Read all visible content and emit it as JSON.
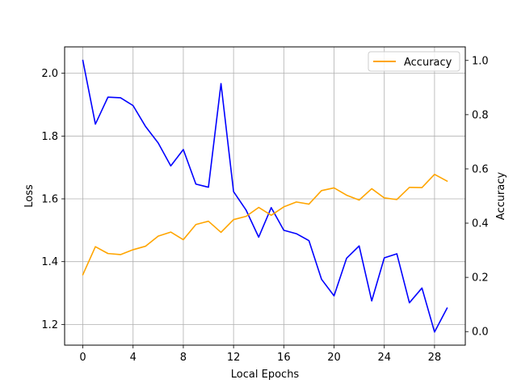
{
  "chart_data": {
    "type": "line",
    "title": "",
    "xlabel": "Local Epochs",
    "ylabel_left": "Loss",
    "ylabel_right": "Accuracy",
    "xlim": [
      -1.45,
      30.45
    ],
    "ylim_left": [
      1.134,
      2.084
    ],
    "ylim_right": [
      -0.05,
      1.05
    ],
    "xticks": [
      0,
      4,
      8,
      12,
      16,
      20,
      24,
      28
    ],
    "yticks_left": [
      1.2,
      1.4,
      1.6,
      1.8,
      2.0
    ],
    "yticks_left_labels": [
      "1.2",
      "1.4",
      "1.6",
      "1.8",
      "2.0"
    ],
    "yticks_right": [
      0.0,
      0.2,
      0.4,
      0.6,
      0.8,
      1.0
    ],
    "yticks_right_labels": [
      "0.0",
      "0.2",
      "0.4",
      "0.6",
      "0.8",
      "1.0"
    ],
    "grid": true,
    "legend_position": "top-right",
    "x": [
      0,
      1,
      2,
      3,
      4,
      5,
      6,
      7,
      8,
      9,
      10,
      11,
      12,
      13,
      14,
      15,
      16,
      17,
      18,
      19,
      20,
      21,
      22,
      23,
      24,
      25,
      26,
      27,
      28,
      29
    ],
    "series": [
      {
        "name": "",
        "axis": "left",
        "color": "#0000ff",
        "values": [
          2.041,
          1.838,
          1.924,
          1.922,
          1.897,
          1.83,
          1.778,
          1.705,
          1.757,
          1.647,
          1.637,
          1.967,
          1.623,
          1.564,
          1.478,
          1.572,
          1.5,
          1.489,
          1.467,
          1.344,
          1.291,
          1.411,
          1.45,
          1.275,
          1.412,
          1.425,
          1.269,
          1.316,
          1.176,
          1.252
        ]
      },
      {
        "name": "Accuracy",
        "axis": "right",
        "color": "#ffa500",
        "values": [
          0.21,
          0.313,
          0.288,
          0.284,
          0.302,
          0.315,
          0.352,
          0.367,
          0.339,
          0.395,
          0.407,
          0.366,
          0.413,
          0.425,
          0.458,
          0.429,
          0.46,
          0.478,
          0.47,
          0.52,
          0.53,
          0.503,
          0.485,
          0.527,
          0.493,
          0.487,
          0.532,
          0.531,
          0.58,
          0.555
        ]
      }
    ]
  }
}
